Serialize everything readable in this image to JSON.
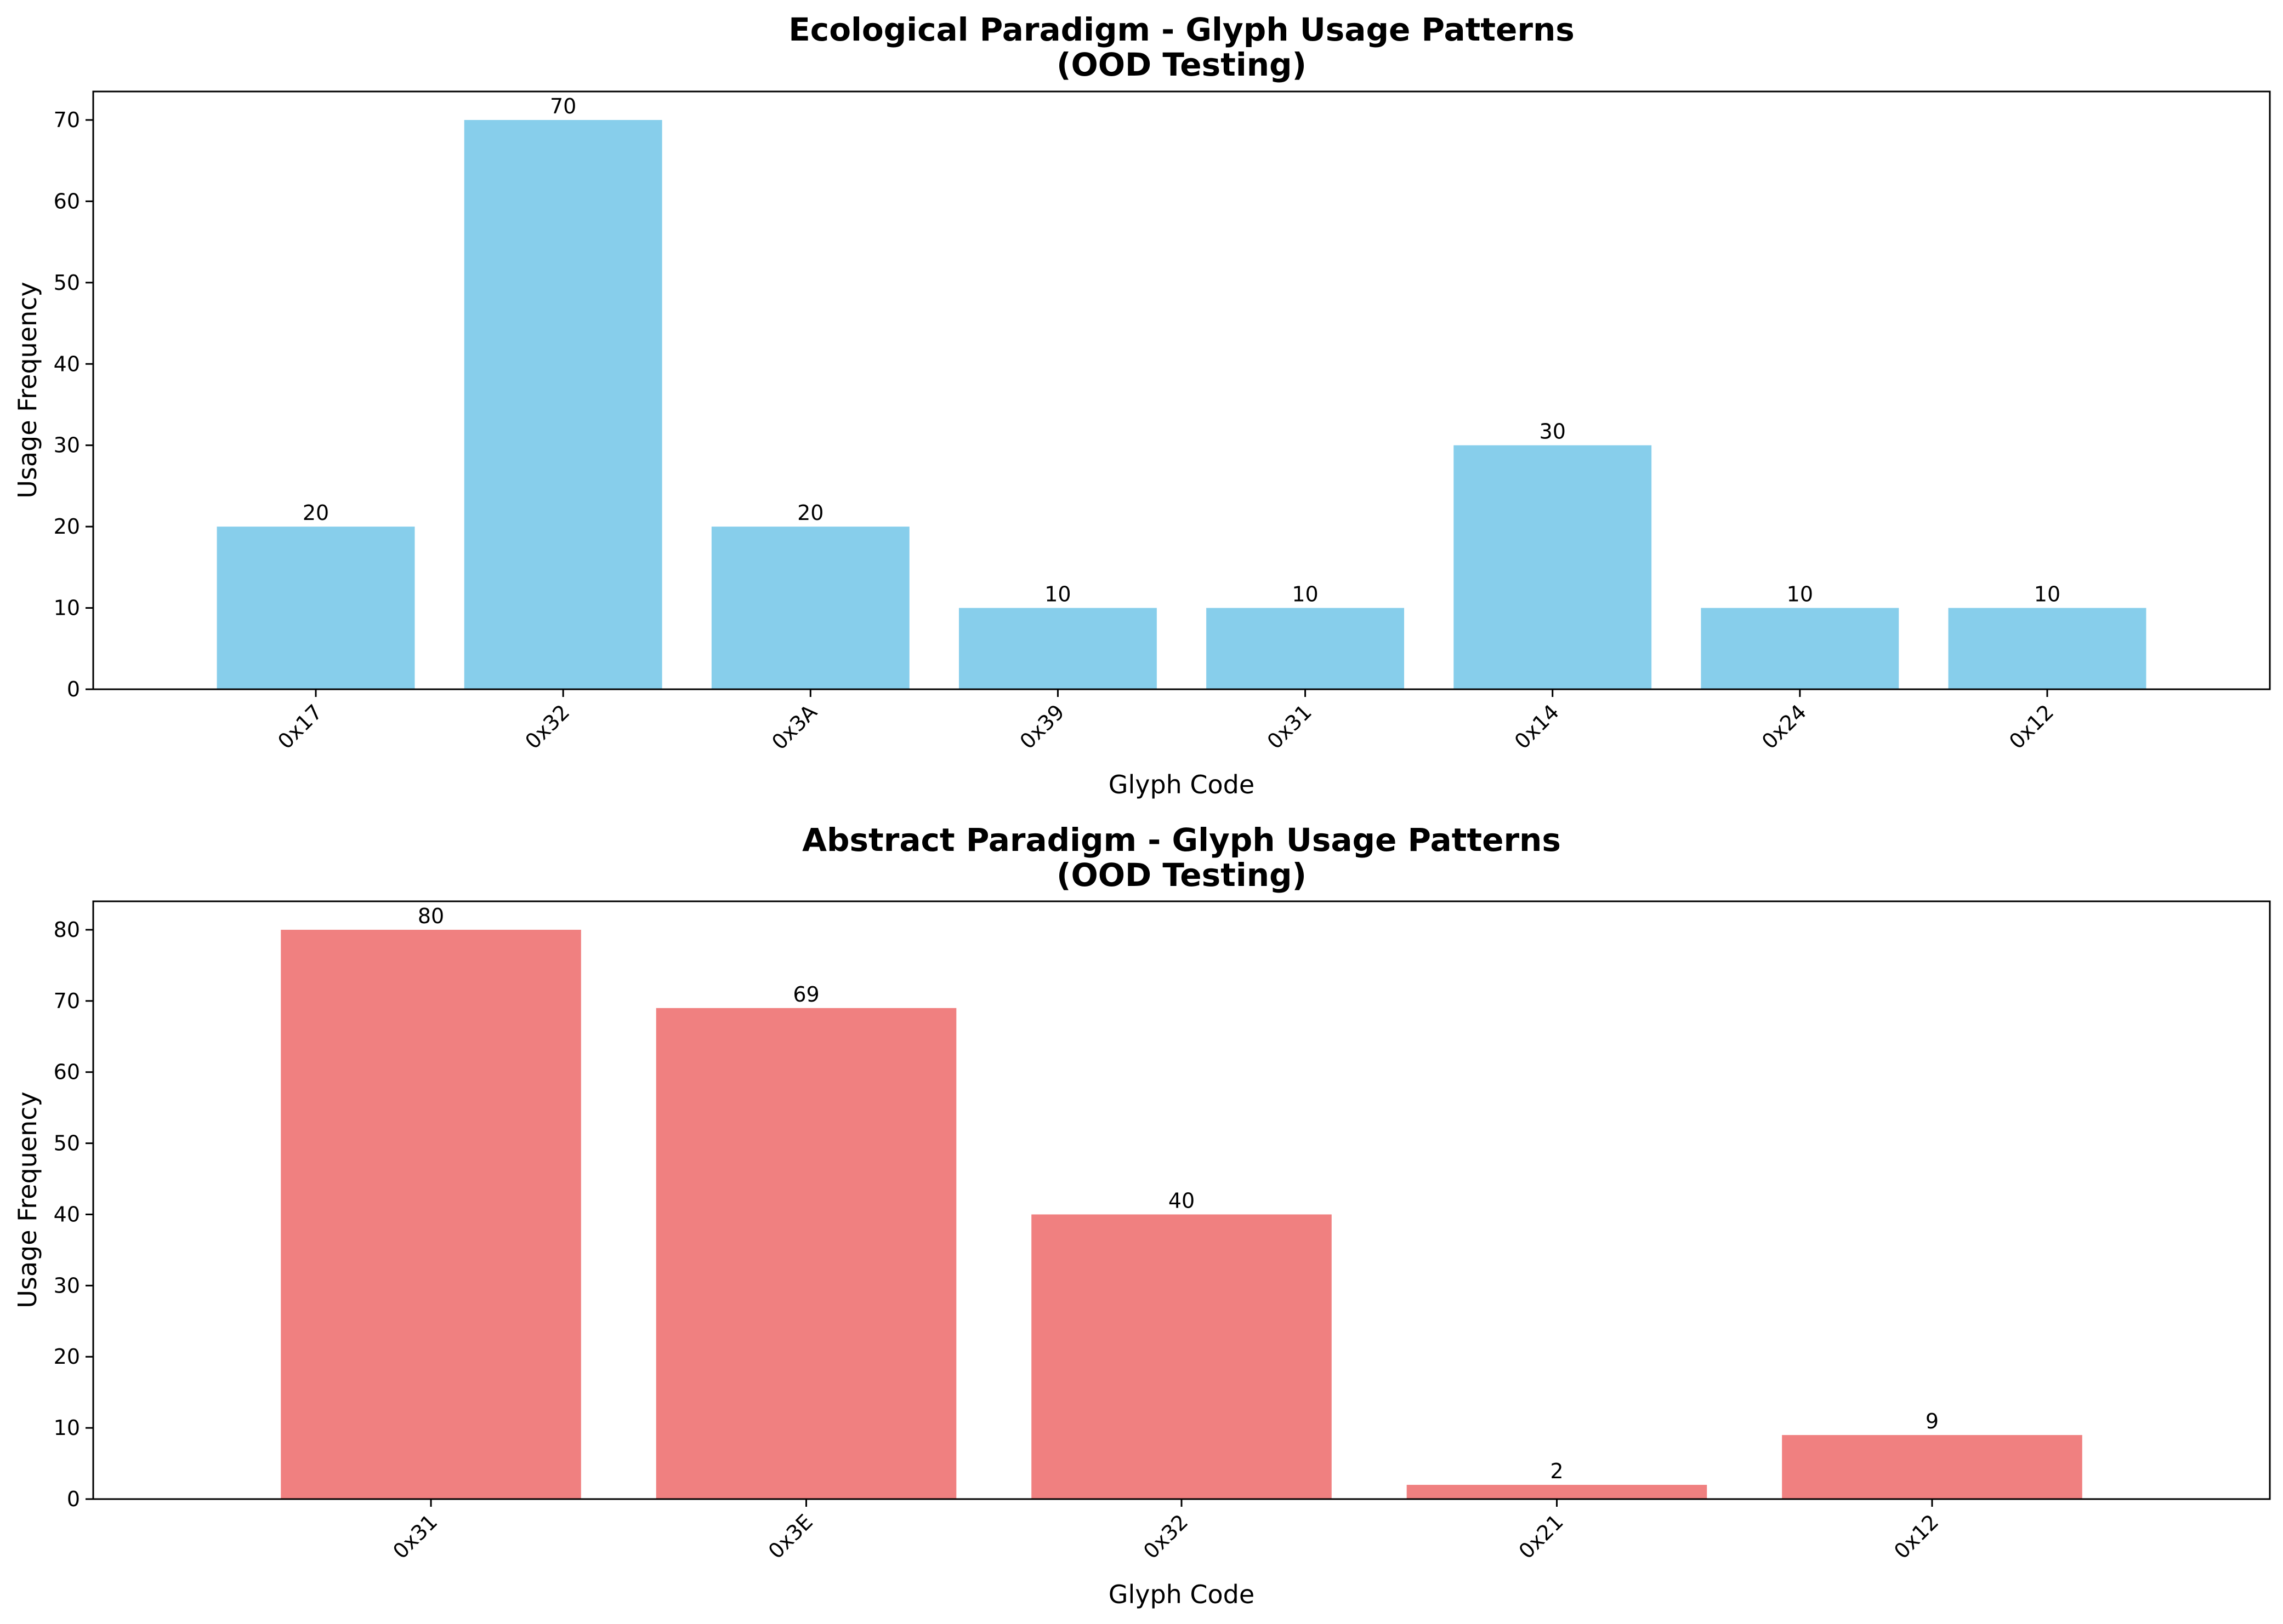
{
  "chart_data": [
    {
      "type": "bar",
      "title_line1": "Ecological Paradigm - Glyph Usage Patterns",
      "title_line2": "(OOD Testing)",
      "xlabel": "Glyph Code",
      "ylabel": "Usage Frequency",
      "categories": [
        "0x17",
        "0x32",
        "0x3A",
        "0x39",
        "0x31",
        "0x14",
        "0x24",
        "0x12"
      ],
      "values": [
        20,
        70,
        20,
        10,
        10,
        30,
        10,
        10
      ],
      "ylim": [
        0,
        73.5
      ],
      "yticks": [
        0,
        10,
        20,
        30,
        40,
        50,
        60,
        70
      ],
      "color": "#87CEEB",
      "grid": false,
      "legend": "none"
    },
    {
      "type": "bar",
      "title_line1": "Abstract Paradigm - Glyph Usage Patterns",
      "title_line2": "(OOD Testing)",
      "xlabel": "Glyph Code",
      "ylabel": "Usage Frequency",
      "categories": [
        "0x31",
        "0x3E",
        "0x32",
        "0x21",
        "0x12"
      ],
      "values": [
        80,
        69,
        40,
        2,
        9
      ],
      "ylim": [
        0,
        84
      ],
      "yticks": [
        0,
        10,
        20,
        30,
        40,
        50,
        60,
        70,
        80
      ],
      "color": "#F08080",
      "grid": false,
      "legend": "none"
    }
  ]
}
